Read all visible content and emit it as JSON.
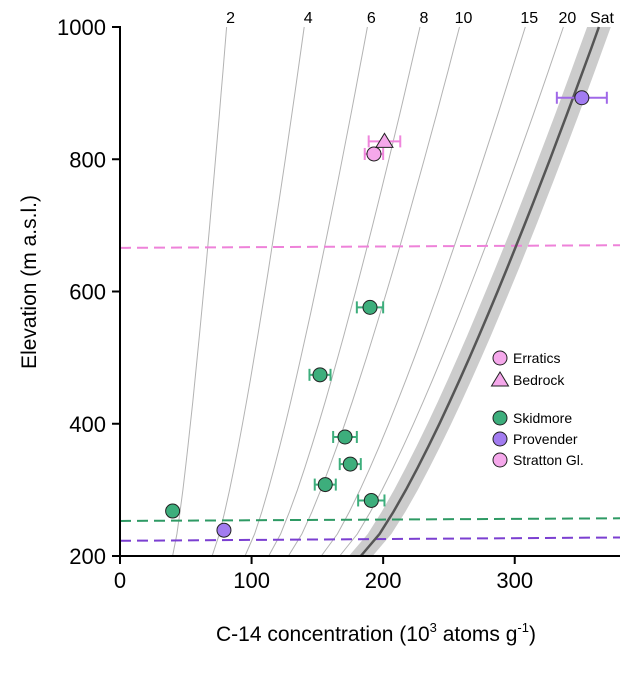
{
  "chart_data": {
    "type": "scatter",
    "xlabel": "C-14 concentration (10",
    "xlabel_sup1": "3",
    "xlabel_mid": " atoms g",
    "xlabel_sup2": "-1",
    "xlabel_end": ")",
    "ylabel": "Elevation (m a.s.l.)",
    "xlim": [
      0,
      380
    ],
    "ylim": [
      200,
      1000
    ],
    "x_ticks": [
      0,
      100,
      200,
      300
    ],
    "x_tick_labels": [
      "0",
      "100",
      "200",
      "300"
    ],
    "y_ticks": [
      200,
      400,
      600,
      800,
      1000
    ],
    "y_tick_labels": [
      "200",
      "400",
      "600",
      "800",
      "1000"
    ],
    "grid": false,
    "isochrons": [
      {
        "label": "2",
        "x_bottom": 40,
        "x_top": 81
      },
      {
        "label": "4",
        "x_bottom": 70,
        "x_top": 140
      },
      {
        "label": "6",
        "x_bottom": 95,
        "x_top": 188
      },
      {
        "label": "8",
        "x_bottom": 113,
        "x_top": 228
      },
      {
        "label": "10",
        "x_bottom": 128,
        "x_top": 258
      },
      {
        "label": "15",
        "x_bottom": 153,
        "x_top": 308
      },
      {
        "label": "20",
        "x_bottom": 167,
        "x_top": 337
      }
    ],
    "saturation": {
      "label": "Sat",
      "x_bottom": 183,
      "x_top": 364,
      "band_halfwidth": 9
    },
    "reference_lines": [
      {
        "y_left": 666,
        "y_right": 670,
        "color": "#ee82d9",
        "name": "Stratton Gl."
      },
      {
        "y_left": 253,
        "y_right": 257,
        "color": "#2e9a64",
        "name": "Skidmore"
      },
      {
        "y_left": 223,
        "y_right": 228,
        "color": "#7b3fd1",
        "name": "Provender"
      }
    ],
    "series": [
      {
        "group": "Skidmore",
        "shape": "circle",
        "color": "#3dae7c",
        "points": [
          {
            "x": 40,
            "y": 268,
            "err": 0
          },
          {
            "x": 190,
            "y": 576,
            "err": 10
          },
          {
            "x": 152,
            "y": 474,
            "err": 8
          },
          {
            "x": 171,
            "y": 380,
            "err": 9
          },
          {
            "x": 175,
            "y": 339,
            "err": 8
          },
          {
            "x": 156,
            "y": 308,
            "err": 8
          },
          {
            "x": 191,
            "y": 284,
            "err": 10
          }
        ]
      },
      {
        "group": "Provender",
        "shape": "circle",
        "color": "#a27cf0",
        "points": [
          {
            "x": 79,
            "y": 239,
            "err": 0
          },
          {
            "x": 351,
            "y": 893,
            "err": 19
          }
        ]
      },
      {
        "group": "Stratton Gl.",
        "shape": "circle",
        "color": "#f5a8eb",
        "points": [
          {
            "x": 193,
            "y": 808,
            "err": 7
          }
        ]
      },
      {
        "group": "Stratton Gl.",
        "shape": "triangle",
        "color": "#f5a8eb",
        "points": [
          {
            "x": 201,
            "y": 827,
            "err": 12
          }
        ]
      }
    ],
    "legend": {
      "placement": "right",
      "shape_entries": [
        {
          "label": "Erratics",
          "shape": "circle",
          "color": "#f5a8eb"
        },
        {
          "label": "Bedrock",
          "shape": "triangle",
          "color": "#f5a8eb"
        }
      ],
      "site_entries": [
        {
          "label": "Skidmore",
          "shape": "circle",
          "color": "#3dae7c"
        },
        {
          "label": "Provender",
          "shape": "circle",
          "color": "#a27cf0"
        },
        {
          "label": "Stratton Gl.",
          "shape": "circle",
          "color": "#f5a8eb"
        }
      ]
    },
    "colors": {
      "skidmore_err": "#3dae7c",
      "provender_err": "#a068e8",
      "stratton_err": "#ef86dc",
      "isochron": "#b3b3b3",
      "saturation_line": "#555555",
      "saturation_band": "#cccccc"
    }
  }
}
